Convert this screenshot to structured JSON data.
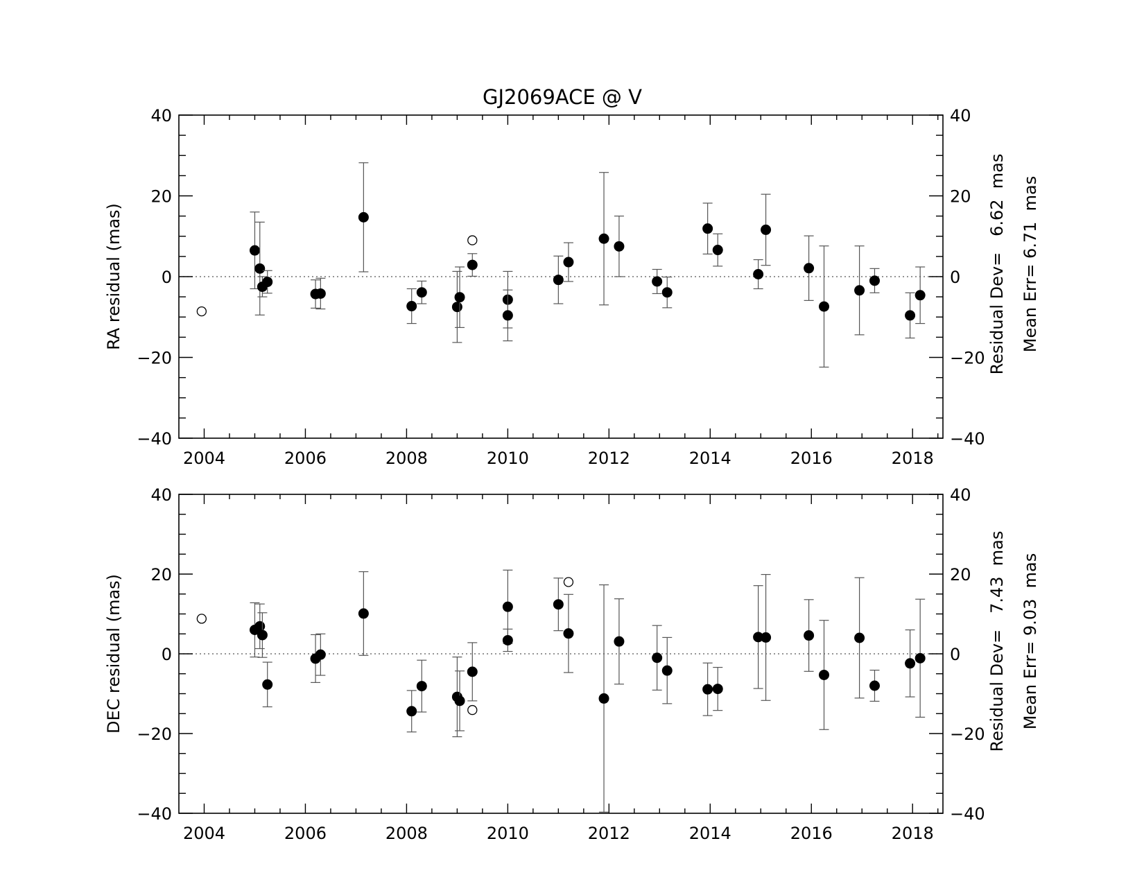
{
  "chart_data": [
    {
      "type": "scatter",
      "title": "GJ2069ACE @ V",
      "xlabel": "",
      "ylabel": "RA residual (mas)",
      "xlim": [
        2003.5,
        2018.6
      ],
      "ylim": [
        -40,
        40
      ],
      "xticks": [
        "2004",
        "2006",
        "2008",
        "2010",
        "2012",
        "2014",
        "2016",
        "2018"
      ],
      "yticks": [
        "40",
        "20",
        "0",
        "−20",
        "−40"
      ],
      "grid": false,
      "zero_line": "dotted",
      "stats": [
        "Residual Dev=   6.62  mas",
        "Mean Err= 6.71  mas"
      ],
      "series": [
        {
          "marker": "filled-circle",
          "points": [
            {
              "x": 2005.0,
              "y": 6.5,
              "err": 9.5
            },
            {
              "x": 2005.1,
              "y": 2.0,
              "err": 11.5
            },
            {
              "x": 2005.15,
              "y": -2.5,
              "err": 2.5
            },
            {
              "x": 2005.25,
              "y": -1.3,
              "err": 2.8
            },
            {
              "x": 2006.2,
              "y": -4.3,
              "err": 3.5
            },
            {
              "x": 2006.3,
              "y": -4.2,
              "err": 3.8
            },
            {
              "x": 2007.15,
              "y": 14.7,
              "err": 13.5
            },
            {
              "x": 2008.1,
              "y": -7.3,
              "err": 4.3
            },
            {
              "x": 2008.3,
              "y": -3.9,
              "err": 2.8
            },
            {
              "x": 2009.0,
              "y": -7.5,
              "err": 8.8
            },
            {
              "x": 2009.05,
              "y": -5.1,
              "err": 7.5
            },
            {
              "x": 2009.3,
              "y": 2.9,
              "err": 2.8
            },
            {
              "x": 2010.0,
              "y": -5.7,
              "err": 7.0
            },
            {
              "x": 2010.0,
              "y": -9.6,
              "err": 6.3
            },
            {
              "x": 2011.0,
              "y": -0.8,
              "err": 5.9
            },
            {
              "x": 2011.2,
              "y": 3.6,
              "err": 4.8
            },
            {
              "x": 2011.9,
              "y": 9.4,
              "err": 16.4
            },
            {
              "x": 2012.2,
              "y": 7.5,
              "err": 7.5
            },
            {
              "x": 2012.95,
              "y": -1.2,
              "err": 3.0
            },
            {
              "x": 2013.15,
              "y": -3.9,
              "err": 3.8
            },
            {
              "x": 2013.95,
              "y": 11.9,
              "err": 6.3
            },
            {
              "x": 2014.15,
              "y": 6.6,
              "err": 4.0
            },
            {
              "x": 2014.95,
              "y": 0.6,
              "err": 3.6
            },
            {
              "x": 2015.1,
              "y": 11.6,
              "err": 8.8
            },
            {
              "x": 2015.95,
              "y": 2.1,
              "err": 8.0
            },
            {
              "x": 2016.25,
              "y": -7.4,
              "err": 15.0
            },
            {
              "x": 2016.95,
              "y": -3.4,
              "err": 11.0
            },
            {
              "x": 2017.25,
              "y": -1.0,
              "err": 3.0
            },
            {
              "x": 2017.95,
              "y": -9.6,
              "err": 5.6
            },
            {
              "x": 2018.15,
              "y": -4.6,
              "err": 7.0
            }
          ]
        },
        {
          "marker": "open-circle",
          "points": [
            {
              "x": 2003.95,
              "y": -8.6
            },
            {
              "x": 2009.3,
              "y": 9.0
            }
          ]
        }
      ]
    },
    {
      "type": "scatter",
      "xlabel": "",
      "ylabel": "DEC residual (mas)",
      "xlim": [
        2003.5,
        2018.6
      ],
      "ylim": [
        -40,
        40
      ],
      "xticks": [
        "2004",
        "2006",
        "2008",
        "2010",
        "2012",
        "2014",
        "2016",
        "2018"
      ],
      "yticks": [
        "40",
        "20",
        "0",
        "−20",
        "−40"
      ],
      "grid": false,
      "zero_line": "dotted",
      "stats": [
        "Residual Dev=   7.43  mas",
        "Mean Err= 9.03  mas"
      ],
      "series": [
        {
          "marker": "filled-circle",
          "points": [
            {
              "x": 2005.0,
              "y": 6.0,
              "err": 6.8
            },
            {
              "x": 2005.1,
              "y": 6.9,
              "err": 5.6
            },
            {
              "x": 2005.15,
              "y": 4.7,
              "err": 5.6
            },
            {
              "x": 2005.25,
              "y": -7.7,
              "err": 5.6
            },
            {
              "x": 2006.2,
              "y": -1.2,
              "err": 6.0
            },
            {
              "x": 2006.3,
              "y": -0.2,
              "err": 5.2
            },
            {
              "x": 2007.15,
              "y": 10.1,
              "err": 10.5
            },
            {
              "x": 2008.1,
              "y": -14.4,
              "err": 5.2
            },
            {
              "x": 2008.3,
              "y": -8.1,
              "err": 6.5
            },
            {
              "x": 2009.0,
              "y": -10.8,
              "err": 10.0
            },
            {
              "x": 2009.05,
              "y": -11.8,
              "err": 7.5
            },
            {
              "x": 2009.3,
              "y": -4.5,
              "err": 7.3
            },
            {
              "x": 2010.0,
              "y": 11.8,
              "err": 9.2
            },
            {
              "x": 2010.0,
              "y": 3.4,
              "err": 2.8
            },
            {
              "x": 2011.0,
              "y": 12.4,
              "err": 6.6
            },
            {
              "x": 2011.2,
              "y": 5.1,
              "err": 9.8
            },
            {
              "x": 2011.9,
              "y": -11.2,
              "err": 28.5
            },
            {
              "x": 2012.2,
              "y": 3.1,
              "err": 10.7
            },
            {
              "x": 2012.95,
              "y": -1.0,
              "err": 8.1
            },
            {
              "x": 2013.15,
              "y": -4.2,
              "err": 8.3
            },
            {
              "x": 2013.95,
              "y": -8.9,
              "err": 6.6
            },
            {
              "x": 2014.15,
              "y": -8.8,
              "err": 5.4
            },
            {
              "x": 2014.95,
              "y": 4.2,
              "err": 12.9
            },
            {
              "x": 2015.1,
              "y": 4.1,
              "err": 15.8
            },
            {
              "x": 2015.95,
              "y": 4.6,
              "err": 9.0
            },
            {
              "x": 2016.25,
              "y": -5.3,
              "err": 13.7
            },
            {
              "x": 2016.95,
              "y": 4.0,
              "err": 15.1
            },
            {
              "x": 2017.25,
              "y": -8.0,
              "err": 3.9
            },
            {
              "x": 2017.95,
              "y": -2.4,
              "err": 8.4
            },
            {
              "x": 2018.15,
              "y": -1.1,
              "err": 14.8
            }
          ]
        },
        {
          "marker": "open-circle",
          "points": [
            {
              "x": 2003.95,
              "y": 8.8
            },
            {
              "x": 2009.3,
              "y": -14.1
            },
            {
              "x": 2011.2,
              "y": 18.0
            }
          ]
        }
      ]
    }
  ]
}
